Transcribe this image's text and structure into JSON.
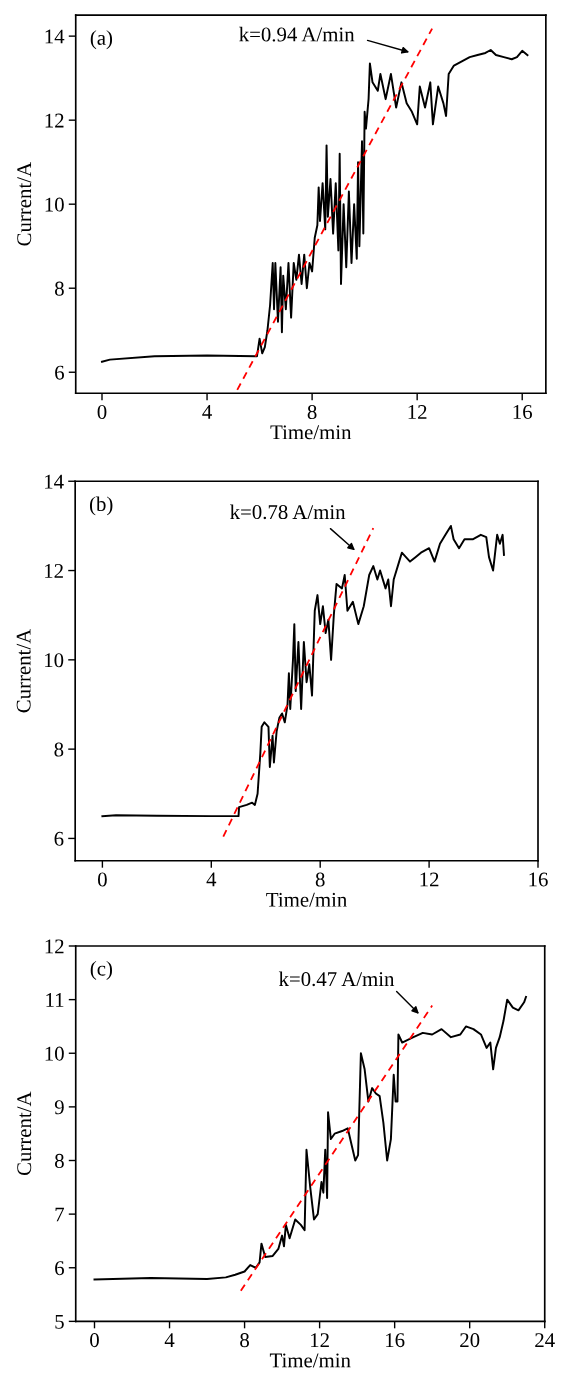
{
  "chart_data": [
    {
      "type": "line",
      "xlabel": "Time/min",
      "ylabel": "Current/A",
      "xlim": [
        -1,
        16.9
      ],
      "ylim": [
        5.5,
        14.5
      ],
      "xticks": [
        0,
        4,
        8,
        12,
        16
      ],
      "yticks": [
        6,
        8,
        10,
        12,
        14
      ],
      "grid": false,
      "legend": false,
      "annotations": [
        "(a)",
        "k=0.94 A/min"
      ],
      "series": [
        {
          "color": "#000000",
          "line_style": "solid",
          "x": [
            0,
            0.3,
            2,
            4,
            5.9,
            6.0,
            6.1,
            6.2,
            6.3,
            6.4,
            6.5,
            6.55,
            6.6,
            6.7,
            6.8,
            6.85,
            6.9,
            7.0,
            7.1,
            7.2,
            7.3,
            7.4,
            7.5,
            7.6,
            7.7,
            7.8,
            7.9,
            8.0,
            8.1,
            8.2,
            8.25,
            8.3,
            8.4,
            8.5,
            8.55,
            8.6,
            8.7,
            8.8,
            8.9,
            9.0,
            9.05,
            9.1,
            9.2,
            9.3,
            9.4,
            9.5,
            9.6,
            9.7,
            9.75,
            9.8,
            9.9,
            9.95,
            10.0,
            10.05,
            10.15,
            10.2,
            10.3,
            10.5,
            10.6,
            10.8,
            11.0,
            11.2,
            11.4,
            11.6,
            11.8,
            12.0,
            12.1,
            12.3,
            12.5,
            12.6,
            12.8,
            13.0,
            13.1,
            13.2,
            13.4,
            13.7,
            14.0,
            14.3,
            14.6,
            14.8,
            15.0,
            15.3,
            15.6,
            15.8,
            16.0,
            16.2
          ],
          "values": [
            6.25,
            6.3,
            6.38,
            6.4,
            6.38,
            6.8,
            6.45,
            6.6,
            7.0,
            7.6,
            8.6,
            7.5,
            8.6,
            7.2,
            8.5,
            6.95,
            8.3,
            7.5,
            8.6,
            7.3,
            8.6,
            8.2,
            8.8,
            8.1,
            8.8,
            8.0,
            8.6,
            8.4,
            9.2,
            9.5,
            10.4,
            9.6,
            10.5,
            9.4,
            11.4,
            9.7,
            10.6,
            9.3,
            10.5,
            8.9,
            11.2,
            8.1,
            10.0,
            8.5,
            10.3,
            8.6,
            10.0,
            8.7,
            11.0,
            9.0,
            11.5,
            9.3,
            12.2,
            11.8,
            12.5,
            13.35,
            12.9,
            12.7,
            13.1,
            12.5,
            13.1,
            12.3,
            12.9,
            12.4,
            12.2,
            11.9,
            12.8,
            12.3,
            12.9,
            11.9,
            12.8,
            12.4,
            12.1,
            13.1,
            13.3,
            13.4,
            13.5,
            13.55,
            13.6,
            13.67,
            13.55,
            13.5,
            13.45,
            13.5,
            13.65,
            13.55
          ]
        },
        {
          "color": "#ff0000",
          "line_style": "dashed",
          "x": [
            5.15,
            12.57
          ],
          "values": [
            5.58,
            14.18
          ]
        }
      ]
    },
    {
      "type": "line",
      "xlabel": "Time/min",
      "ylabel": "Current/A",
      "xlim": [
        -1,
        16
      ],
      "ylim": [
        5.5,
        14
      ],
      "xticks": [
        0,
        4,
        8,
        12,
        16
      ],
      "yticks": [
        6,
        8,
        10,
        12,
        14
      ],
      "grid": false,
      "legend": false,
      "annotations": [
        "(b)",
        "k=0.78 A/min"
      ],
      "series": [
        {
          "color": "#000000",
          "line_style": "solid",
          "x": [
            0,
            0.5,
            2,
            4,
            5.0,
            5.02,
            5.3,
            5.5,
            5.6,
            5.7,
            5.8,
            5.85,
            5.95,
            6.1,
            6.15,
            6.25,
            6.3,
            6.4,
            6.5,
            6.6,
            6.7,
            6.8,
            6.85,
            6.9,
            7.0,
            7.05,
            7.1,
            7.2,
            7.3,
            7.4,
            7.5,
            7.6,
            7.7,
            7.8,
            7.9,
            8.0,
            8.1,
            8.2,
            8.3,
            8.4,
            8.5,
            8.6,
            8.8,
            8.9,
            9.0,
            9.2,
            9.4,
            9.6,
            9.8,
            9.95,
            10.1,
            10.2,
            10.4,
            10.5,
            10.6,
            10.7,
            10.9,
            11.0,
            11.3,
            11.5,
            11.7,
            12.0,
            12.2,
            12.4,
            12.6,
            12.8,
            12.9,
            13.1,
            13.3,
            13.6,
            13.9,
            14.1,
            14.2,
            14.35,
            14.5,
            14.6,
            14.7,
            14.75
          ],
          "values": [
            6.5,
            6.52,
            6.51,
            6.5,
            6.5,
            6.7,
            6.75,
            6.8,
            6.75,
            7.0,
            7.9,
            8.5,
            8.6,
            8.5,
            7.6,
            8.3,
            7.7,
            8.4,
            8.7,
            8.8,
            8.6,
            9.0,
            9.7,
            8.9,
            10.0,
            10.8,
            9.3,
            10.4,
            8.9,
            10.4,
            9.5,
            9.9,
            9.2,
            11.1,
            11.45,
            10.8,
            11.2,
            10.6,
            10.9,
            10.0,
            11.0,
            11.7,
            11.6,
            11.9,
            11.1,
            11.3,
            10.8,
            11.2,
            11.9,
            12.1,
            11.8,
            12.0,
            11.6,
            11.8,
            11.2,
            11.8,
            12.2,
            12.4,
            12.2,
            12.3,
            12.4,
            12.5,
            12.2,
            12.6,
            12.8,
            13.0,
            12.7,
            12.5,
            12.7,
            12.7,
            12.8,
            12.75,
            12.3,
            12.0,
            12.8,
            12.6,
            12.8,
            12.35
          ]
        },
        {
          "color": "#ff0000",
          "line_style": "dashed",
          "x": [
            4.44,
            9.95
          ],
          "values": [
            6.04,
            12.95
          ]
        }
      ]
    },
    {
      "type": "line",
      "xlabel": "Time/min",
      "ylabel": "Current/A",
      "xlim": [
        -1,
        24
      ],
      "ylim": [
        5,
        12
      ],
      "xticks": [
        0,
        4,
        8,
        12,
        16,
        20,
        24
      ],
      "yticks": [
        5,
        6,
        7,
        8,
        9,
        10,
        11,
        12
      ],
      "grid": false,
      "legend": false,
      "annotations": [
        "(c)",
        "k=0.47 A/min"
      ],
      "series": [
        {
          "color": "#000000",
          "line_style": "solid",
          "x": [
            0,
            3,
            6,
            7,
            7.5,
            8,
            8.3,
            8.6,
            8.8,
            8.9,
            9.1,
            9.5,
            9.8,
            10.0,
            10.1,
            10.2,
            10.4,
            10.7,
            11.0,
            11.2,
            11.3,
            11.5,
            11.7,
            11.9,
            12.1,
            12.2,
            12.3,
            12.4,
            12.45,
            12.6,
            12.8,
            13.2,
            13.5,
            13.7,
            13.9,
            14.05,
            14.2,
            14.4,
            14.6,
            14.8,
            15.0,
            15.2,
            15.4,
            15.6,
            15.8,
            15.95,
            16.05,
            16.15,
            16.2,
            16.4,
            17.0,
            17.5,
            18.0,
            18.5,
            19.0,
            19.5,
            19.8,
            20.2,
            20.6,
            20.9,
            21.1,
            21.25,
            21.4,
            21.6,
            21.8,
            22.0,
            22.3,
            22.6,
            22.9,
            23.0
          ],
          "values": [
            5.78,
            5.81,
            5.79,
            5.82,
            5.87,
            5.93,
            6.05,
            6.0,
            6.1,
            6.45,
            6.2,
            6.22,
            6.35,
            6.6,
            6.4,
            6.8,
            6.55,
            6.9,
            6.8,
            6.7,
            8.2,
            7.5,
            6.9,
            7.0,
            7.6,
            7.4,
            8.2,
            7.3,
            8.9,
            8.4,
            8.5,
            8.55,
            8.6,
            8.3,
            8.0,
            8.1,
            10.0,
            9.7,
            9.1,
            9.35,
            9.25,
            9.2,
            8.7,
            8.0,
            8.4,
            9.6,
            9.1,
            9.1,
            10.35,
            10.2,
            10.3,
            10.38,
            10.35,
            10.45,
            10.3,
            10.35,
            10.5,
            10.45,
            10.35,
            10.1,
            10.2,
            9.7,
            10.1,
            10.3,
            10.6,
            11.0,
            10.85,
            10.8,
            10.95,
            11.05
          ]
        },
        {
          "color": "#ff0000",
          "line_style": "dashed",
          "x": [
            7.8,
            18.0
          ],
          "values": [
            5.57,
            10.89
          ]
        }
      ]
    }
  ]
}
